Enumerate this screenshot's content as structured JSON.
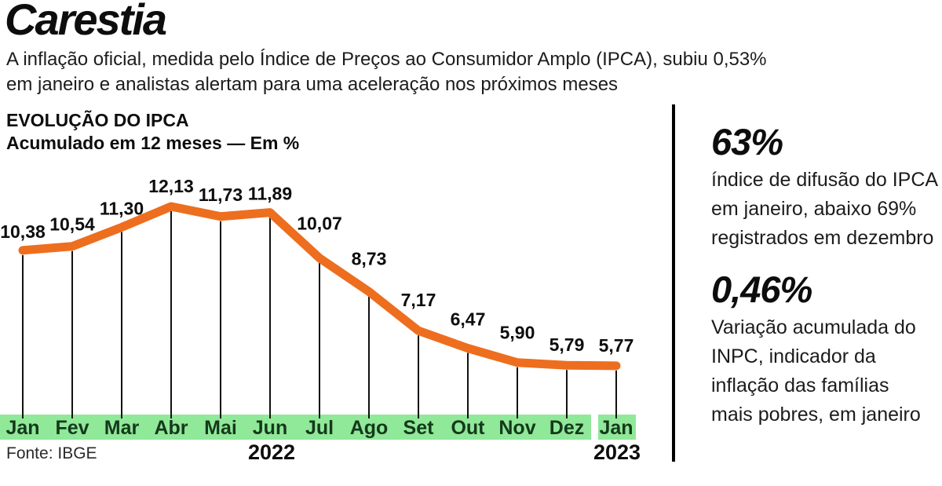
{
  "header": {
    "title": "Carestia",
    "subtitle_line1": "A inflação oficial, medida pelo Índice de Preços ao Consumidor Amplo (IPCA), subiu 0,53%",
    "subtitle_line2": "em janeiro e analistas alertam para uma aceleração nos próximos meses"
  },
  "chart": {
    "title": "EVOLUÇÃO DO IPCA",
    "subtitle": "Acumulado em 12 meses — Em %",
    "source": "Fonte: IBGE",
    "year_left": "2022",
    "year_right": "2023"
  },
  "chart_data": {
    "type": "line",
    "title": "EVOLUÇÃO DO IPCA",
    "subtitle": "Acumulado em 12 meses — Em %",
    "categories": [
      "Jan",
      "Fev",
      "Mar",
      "Abr",
      "Mai",
      "Jun",
      "Jul",
      "Ago",
      "Set",
      "Out",
      "Nov",
      "Dez",
      "Jan"
    ],
    "values": [
      10.38,
      10.54,
      11.3,
      12.13,
      11.73,
      11.89,
      10.07,
      8.73,
      7.17,
      6.47,
      5.9,
      5.79,
      5.77
    ],
    "year_groups": [
      {
        "year": "2022",
        "from": "Jan",
        "to": "Dez"
      },
      {
        "year": "2023",
        "from": "Jan",
        "to": "Jan"
      }
    ],
    "xlabel": "",
    "ylabel": "Em %",
    "ylim": [
      5.5,
      12.5
    ],
    "grid": false,
    "legend": "none",
    "line_color": "#ed6e1e",
    "band_color": "#90e899",
    "tick_color": "#111111",
    "source": "Fonte: IBGE"
  },
  "stats": [
    {
      "value": "63%",
      "lines": [
        "índice de difusão do IPCA",
        "em janeiro, abaixo 69%",
        "registrados em dezembro"
      ]
    },
    {
      "value": "0,46%",
      "lines": [
        "Variação acumulada do",
        "INPC, indicador da",
        "inflação das famílias",
        "mais pobres, em janeiro"
      ]
    }
  ]
}
